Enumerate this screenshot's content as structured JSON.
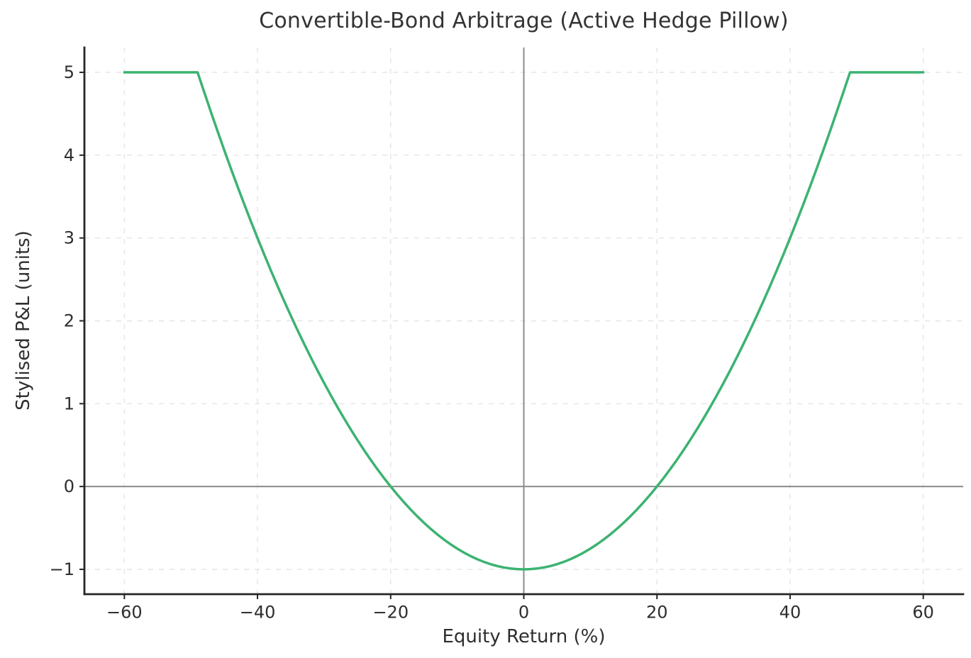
{
  "chart_data": {
    "type": "line",
    "title": "Convertible-Bond Arbitrage (Active Hedge Pillow)",
    "xlabel": "Equity Return (%)",
    "ylabel": "Stylised P&L (units)",
    "xlim": [
      -66,
      66
    ],
    "ylim": [
      -1.3,
      5.3
    ],
    "grid": "dashed, both axes, at every tick",
    "legend": "none",
    "reference_lines": {
      "horizontal_at_y": 0,
      "vertical_at_x": 0
    },
    "xticks": {
      "values": [
        -60,
        -40,
        -20,
        0,
        20,
        40,
        60
      ],
      "labels": [
        "−60",
        "−40",
        "−20",
        "0",
        "20",
        "40",
        "60"
      ]
    },
    "yticks": {
      "values": [
        -1,
        0,
        1,
        2,
        3,
        4,
        5
      ],
      "labels": [
        "−1",
        "0",
        "1",
        "2",
        "3",
        "4",
        "5"
      ]
    },
    "series": [
      {
        "name": "Stylised P&L",
        "color": "#3cb371",
        "x": [
          -60,
          -59,
          -58,
          -57,
          -56,
          -55,
          -54,
          -53,
          -52,
          -51,
          -50,
          -49,
          -48,
          -47,
          -46,
          -45,
          -44,
          -43,
          -42,
          -41,
          -40,
          -39,
          -38,
          -37,
          -36,
          -35,
          -34,
          -33,
          -32,
          -31,
          -30,
          -29,
          -28,
          -27,
          -26,
          -25,
          -24,
          -23,
          -22,
          -21,
          -20,
          -19,
          -18,
          -17,
          -16,
          -15,
          -14,
          -13,
          -12,
          -11,
          -10,
          -9,
          -8,
          -7,
          -6,
          -5,
          -4,
          -3,
          -2,
          -1,
          0,
          1,
          2,
          3,
          4,
          5,
          6,
          7,
          8,
          9,
          10,
          11,
          12,
          13,
          14,
          15,
          16,
          17,
          18,
          19,
          20,
          21,
          22,
          23,
          24,
          25,
          26,
          27,
          28,
          29,
          30,
          31,
          32,
          33,
          34,
          35,
          36,
          37,
          38,
          39,
          40,
          41,
          42,
          43,
          44,
          45,
          46,
          47,
          48,
          49,
          50,
          51,
          52,
          53,
          54,
          55,
          56,
          57,
          58,
          59,
          60
        ],
        "y": [
          5,
          5,
          5,
          5,
          5,
          5,
          5,
          5,
          5,
          5,
          5,
          5,
          4.76,
          4.5225,
          4.29,
          4.0625,
          3.84,
          3.6225,
          3.41,
          3.2025,
          3,
          2.8025,
          2.61,
          2.4225,
          2.24,
          2.0625,
          1.89,
          1.7225,
          1.56,
          1.4025,
          1.25,
          1.1025,
          0.96,
          0.8225,
          0.69,
          0.5625,
          0.44,
          0.3225,
          0.21,
          0.1025,
          0,
          -0.0975,
          -0.19,
          -0.2775,
          -0.36,
          -0.4375,
          -0.51,
          -0.5775,
          -0.64,
          -0.6975,
          -0.75,
          -0.7975,
          -0.84,
          -0.8775,
          -0.91,
          -0.9375,
          -0.96,
          -0.9775,
          -0.99,
          -0.9975,
          -1,
          -0.9975,
          -0.99,
          -0.9775,
          -0.96,
          -0.9375,
          -0.91,
          -0.8775,
          -0.84,
          -0.7975,
          -0.75,
          -0.6975,
          -0.64,
          -0.5775,
          -0.51,
          -0.4375,
          -0.36,
          -0.2775,
          -0.19,
          -0.0975,
          0,
          0.1025,
          0.21,
          0.3225,
          0.44,
          0.5625,
          0.69,
          0.8225,
          0.96,
          1.1025,
          1.25,
          1.4025,
          1.56,
          1.7225,
          1.89,
          2.0625,
          2.24,
          2.4225,
          2.61,
          2.8025,
          3,
          3.2025,
          3.41,
          3.6225,
          3.84,
          4.0625,
          4.29,
          4.5225,
          4.76,
          5,
          5,
          5,
          5,
          5,
          5,
          5,
          5,
          5,
          5,
          5,
          5
        ]
      }
    ],
    "style": {
      "line_color": "#3cb371",
      "line_width": 3.5,
      "grid_color": "#e6e6e6",
      "zero_line_color": "#8c8c8c",
      "spine_color": "#262626",
      "tick_text_color": "#2e2e2e",
      "title_color": "#333333",
      "background": "#ffffff"
    }
  }
}
